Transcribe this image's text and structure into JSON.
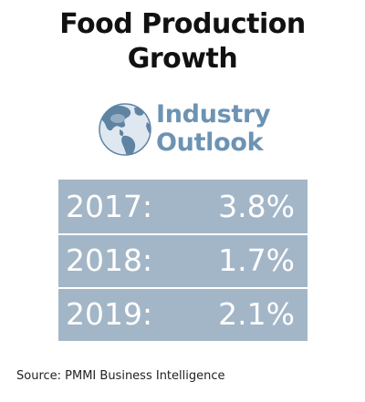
{
  "title": {
    "line1": "Food Production",
    "line2": "Growth"
  },
  "logo": {
    "icon": "globe-icon",
    "line1": "Industry",
    "line2": "Outlook"
  },
  "colors": {
    "table_bg": "#a3b6c7",
    "logo_text": "#6c93b4",
    "globe": "#5f83a3"
  },
  "rows": [
    {
      "year": "2017:",
      "value": "3.8%"
    },
    {
      "year": "2018:",
      "value": "1.7%"
    },
    {
      "year": "2019:",
      "value": "2.1%"
    }
  ],
  "source": "Source: PMMI Business Intelligence"
}
